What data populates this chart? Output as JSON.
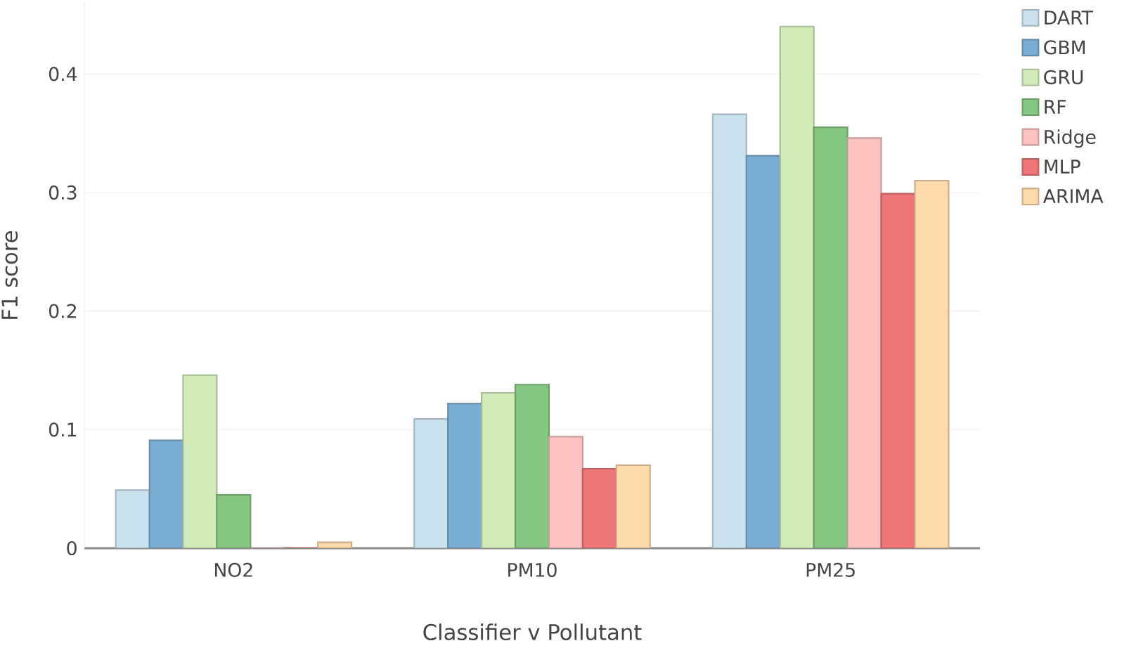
{
  "chart_data": {
    "type": "bar",
    "xlabel": "Classifier v Pollutant",
    "ylabel": "F1 score",
    "categories": [
      "NO2",
      "PM10",
      "PM25"
    ],
    "series": [
      {
        "name": "DART",
        "color": "#cae2ee",
        "values": [
          0.049,
          0.109,
          0.366
        ]
      },
      {
        "name": "GBM",
        "color": "#79aed2",
        "values": [
          0.091,
          0.122,
          0.331
        ]
      },
      {
        "name": "GRU",
        "color": "#d1ecb9",
        "values": [
          0.146,
          0.131,
          0.44
        ]
      },
      {
        "name": "RF",
        "color": "#85c680",
        "values": [
          0.045,
          0.138,
          0.355
        ]
      },
      {
        "name": "Ridge",
        "color": "#fdc2c2",
        "values": [
          0,
          0.094,
          0.346
        ]
      },
      {
        "name": "MLP",
        "color": "#ee7677",
        "values": [
          0,
          0.067,
          0.299
        ]
      },
      {
        "name": "ARIMA",
        "color": "#fed9a9",
        "values": [
          0.005,
          0.07,
          0.31
        ]
      }
    ],
    "ylim": [
      0,
      0.46
    ],
    "yticks": [
      0,
      0.1,
      0.2,
      0.3,
      0.4
    ],
    "grid": "y",
    "legend": "top right"
  }
}
